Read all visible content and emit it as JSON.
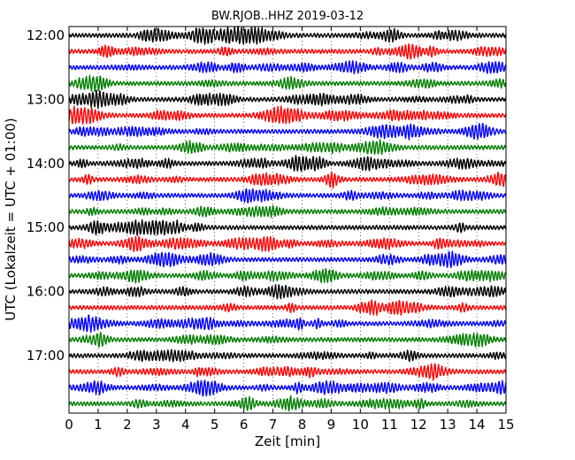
{
  "chart_data": {
    "type": "line",
    "title": "BW.RJOB..HHZ 2019-03-12",
    "xlabel": "Zeit  [min]",
    "ylabel": "UTC (Lokalzeit = UTC + 01:00)",
    "xlim": [
      0,
      15
    ],
    "x_ticks": [
      "0",
      "1",
      "2",
      "3",
      "4",
      "5",
      "6",
      "7",
      "8",
      "9",
      "10",
      "11",
      "12",
      "13",
      "14",
      "15"
    ],
    "y_tick_labels": [
      "12:00",
      "13:00",
      "14:00",
      "15:00",
      "16:00",
      "17:00"
    ],
    "grid": true,
    "trace_interval_minutes": 15,
    "trace_colors": [
      "#000000",
      "#ff0000",
      "#0000ff",
      "#007f00"
    ],
    "traces": [
      {
        "start": "12:00"
      },
      {
        "start": "12:15"
      },
      {
        "start": "12:30"
      },
      {
        "start": "12:45"
      },
      {
        "start": "13:00"
      },
      {
        "start": "13:15"
      },
      {
        "start": "13:30"
      },
      {
        "start": "13:45"
      },
      {
        "start": "14:00"
      },
      {
        "start": "14:15"
      },
      {
        "start": "14:30"
      },
      {
        "start": "14:45"
      },
      {
        "start": "15:00"
      },
      {
        "start": "15:15"
      },
      {
        "start": "15:30"
      },
      {
        "start": "15:45"
      },
      {
        "start": "16:00"
      },
      {
        "start": "16:15"
      },
      {
        "start": "16:30"
      },
      {
        "start": "16:45"
      },
      {
        "start": "17:00"
      },
      {
        "start": "17:15"
      },
      {
        "start": "17:30"
      },
      {
        "start": "17:45"
      }
    ]
  }
}
